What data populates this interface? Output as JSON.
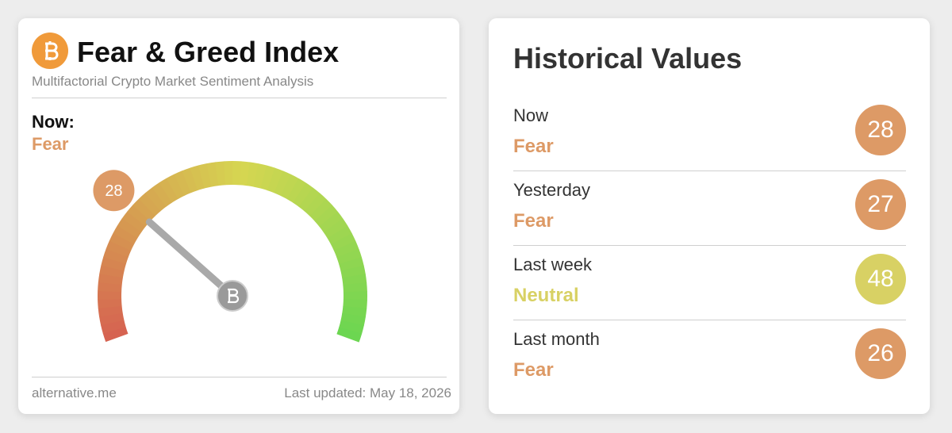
{
  "index_card": {
    "title": "Fear & Greed Index",
    "subtitle": "Multifactorial Crypto Market Sentiment Analysis",
    "now_label": "Now:",
    "classification": "Fear",
    "classification_color": "#dd9a66",
    "gauge": {
      "value": 28,
      "scale": [
        0,
        100
      ]
    },
    "source": "alternative.me",
    "last_updated": "Last updated: May 18, 2026"
  },
  "history_card": {
    "title": "Historical Values",
    "rows": [
      {
        "label": "Now",
        "classification": "Fear",
        "value": 28,
        "color": "#dd9a66"
      },
      {
        "label": "Yesterday",
        "classification": "Fear",
        "value": 27,
        "color": "#dd9a66"
      },
      {
        "label": "Last week",
        "classification": "Neutral",
        "value": 48,
        "color": "#d8d164"
      },
      {
        "label": "Last month",
        "classification": "Fear",
        "value": 26,
        "color": "#dd9a66"
      }
    ]
  }
}
